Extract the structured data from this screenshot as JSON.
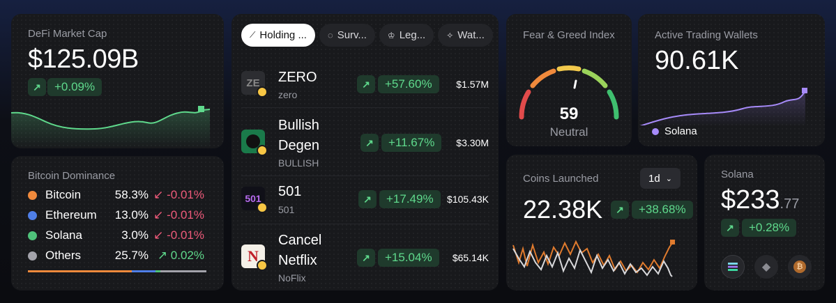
{
  "market_cap": {
    "title": "DeFi Market Cap",
    "value": "$125.09B",
    "delta": "+0.09%",
    "arrow": "↗",
    "line_color": "#5fd98c"
  },
  "dominance": {
    "title": "Bitcoin Dominance",
    "rows": [
      {
        "name": "Bitcoin",
        "pct": "58.3%",
        "arrow": "↙",
        "change": "-0.01%",
        "color": "#f08a3c",
        "direction": "down"
      },
      {
        "name": "Ethereum",
        "pct": "13.0%",
        "arrow": "↙",
        "change": "-0.01%",
        "color": "#4f7fe8",
        "direction": "down"
      },
      {
        "name": "Solana",
        "pct": "3.0%",
        "arrow": "↙",
        "change": "-0.01%",
        "color": "#4fc27a",
        "direction": "down"
      },
      {
        "name": "Others",
        "pct": "25.7%",
        "arrow": "↗",
        "change": "0.02%",
        "color": "#a3a3ab",
        "direction": "up"
      }
    ]
  },
  "tabs": [
    {
      "label": "Holding ...",
      "icon": "trend-icon",
      "active": true
    },
    {
      "label": "Surv...",
      "icon": "circle-dashed-icon",
      "active": false
    },
    {
      "label": "Leg...",
      "icon": "crown-icon",
      "active": false
    },
    {
      "label": "Wat...",
      "icon": "sparkle-icon",
      "active": false
    }
  ],
  "tokens": [
    {
      "name": "ZERO",
      "ticker": "zero",
      "change": "+57.60%",
      "mcap": "$1.57M",
      "logo_text": "ZE"
    },
    {
      "name": "Bullish Degen",
      "ticker": "BULLISH",
      "change": "+11.67%",
      "mcap": "$3.30M",
      "logo_text": ""
    },
    {
      "name": "501",
      "ticker": "501",
      "change": "+17.49%",
      "mcap": "$105.43K",
      "logo_text": "501"
    },
    {
      "name": "Cancel Netflix",
      "ticker": "NoFlix",
      "change": "+15.04%",
      "mcap": "$65.14K",
      "logo_text": "N"
    }
  ],
  "fear_greed": {
    "title": "Fear & Greed Index",
    "value": "59",
    "label": "Neutral"
  },
  "wallets": {
    "title": "Active Trading Wallets",
    "value": "90.61K",
    "legend": "Solana",
    "line_color": "#a78bfa"
  },
  "coins": {
    "title": "Coins Launched",
    "value": "22.38K",
    "delta": "+38.68%",
    "range": "1d"
  },
  "solana": {
    "title": "Solana",
    "value_main": "$233",
    "value_cents": ".77",
    "delta": "+0.28%"
  }
}
